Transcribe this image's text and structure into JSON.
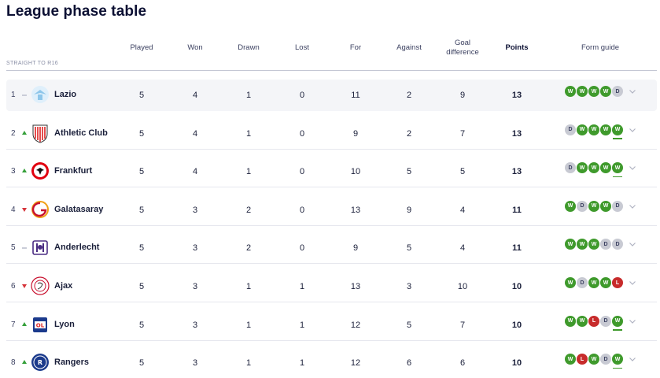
{
  "title": "League phase table",
  "qualification_label": "STRAIGHT TO R16",
  "headers": {
    "played": "Played",
    "won": "Won",
    "drawn": "Drawn",
    "lost": "Lost",
    "for": "For",
    "against": "Against",
    "goal_diff_1": "Goal",
    "goal_diff_2": "difference",
    "points": "Points",
    "form": "Form guide"
  },
  "colors": {
    "win": "#3f9a2c",
    "draw": "#c8cad3",
    "loss": "#c72b2b",
    "up": "#35a03a",
    "down": "#d6343a"
  },
  "rows": [
    {
      "rank": "1",
      "movement": "same",
      "team": "Lazio",
      "crest": "lazio-crest-icon",
      "played": "5",
      "won": "4",
      "drawn": "1",
      "lost": "0",
      "for": "11",
      "against": "2",
      "gd": "9",
      "points": "13",
      "form": [
        "W",
        "W",
        "W",
        "W",
        "D"
      ]
    },
    {
      "rank": "2",
      "movement": "up",
      "team": "Athletic Club",
      "crest": "athletic-club-crest-icon",
      "played": "5",
      "won": "4",
      "drawn": "1",
      "lost": "0",
      "for": "9",
      "against": "2",
      "gd": "7",
      "points": "13",
      "form": [
        "D",
        "W",
        "W",
        "W",
        "W"
      ]
    },
    {
      "rank": "3",
      "movement": "up",
      "team": "Frankfurt",
      "crest": "frankfurt-crest-icon",
      "played": "5",
      "won": "4",
      "drawn": "1",
      "lost": "0",
      "for": "10",
      "against": "5",
      "gd": "5",
      "points": "13",
      "form": [
        "D",
        "W",
        "W",
        "W",
        "W"
      ]
    },
    {
      "rank": "4",
      "movement": "down",
      "team": "Galatasaray",
      "crest": "galatasaray-crest-icon",
      "played": "5",
      "won": "3",
      "drawn": "2",
      "lost": "0",
      "for": "13",
      "against": "9",
      "gd": "4",
      "points": "11",
      "form": [
        "W",
        "D",
        "W",
        "W",
        "D"
      ]
    },
    {
      "rank": "5",
      "movement": "same",
      "team": "Anderlecht",
      "crest": "anderlecht-crest-icon",
      "played": "5",
      "won": "3",
      "drawn": "2",
      "lost": "0",
      "for": "9",
      "against": "5",
      "gd": "4",
      "points": "11",
      "form": [
        "W",
        "W",
        "W",
        "D",
        "D"
      ]
    },
    {
      "rank": "6",
      "movement": "down",
      "team": "Ajax",
      "crest": "ajax-crest-icon",
      "played": "5",
      "won": "3",
      "drawn": "1",
      "lost": "1",
      "for": "13",
      "against": "3",
      "gd": "10",
      "points": "10",
      "form": [
        "W",
        "D",
        "W",
        "W",
        "L"
      ]
    },
    {
      "rank": "7",
      "movement": "up",
      "team": "Lyon",
      "crest": "lyon-crest-icon",
      "played": "5",
      "won": "3",
      "drawn": "1",
      "lost": "1",
      "for": "12",
      "against": "5",
      "gd": "7",
      "points": "10",
      "form": [
        "W",
        "W",
        "L",
        "D",
        "W"
      ]
    },
    {
      "rank": "8",
      "movement": "up",
      "team": "Rangers",
      "crest": "rangers-crest-icon",
      "played": "5",
      "won": "3",
      "drawn": "1",
      "lost": "1",
      "for": "12",
      "against": "6",
      "gd": "6",
      "points": "10",
      "form": [
        "W",
        "L",
        "W",
        "D",
        "W"
      ]
    }
  ]
}
